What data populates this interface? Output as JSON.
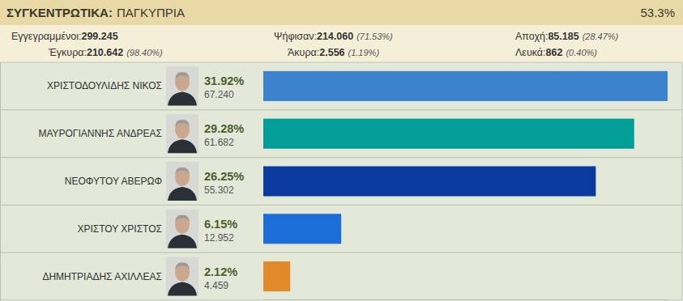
{
  "summary": {
    "title": "ΣΥΓΚΕΝΤΡΩΤΙΚΑ:",
    "subtitle": "ΠΑΓΚΥΠΡΙΑ",
    "counted": "53.3%",
    "stats": [
      [
        {
          "label": "Εγγεγραμμένοι:",
          "value": "299.245"
        },
        {
          "label": "Ψήφισαν:",
          "value": "214.060",
          "share": "(71.53%)"
        },
        {
          "label": "Αποχή:",
          "value": "85.185",
          "share": "(28.47%)"
        }
      ],
      [
        {
          "label": "Έγκυρα:",
          "value": "210.642",
          "share": "(98.40%)"
        },
        {
          "label": "Άκυρα:",
          "value": "2.556",
          "share": "(1.19%)"
        },
        {
          "label": "Λευκά:",
          "value": "862",
          "share": "(0.40%)"
        }
      ]
    ]
  },
  "chart_data": {
    "type": "bar",
    "orientation": "horizontal",
    "categories": [
      "ΧΡΙΣΤΟΔΟΥΛΙΔΗΣ ΝΙΚΟΣ",
      "ΜΑΥΡΟΓΙΑΝΝΗΣ ΑΝΔΡΕΑΣ",
      "ΝΕΟΦΥΤΟΥ ΑΒΕΡΩΦ",
      "ΧΡΙΣΤΟΥ ΧΡΙΣΤΟΣ",
      "ΔΗΜΗΤΡΙΑΔΗΣ ΑΧΙΛΛΕΑΣ"
    ],
    "values": [
      31.92,
      29.28,
      26.25,
      6.15,
      2.12
    ],
    "value_labels": [
      "31.92%",
      "29.28%",
      "26.25%",
      "6.15%",
      "2.12%"
    ],
    "votes": [
      67240,
      61682,
      55302,
      12952,
      4459
    ],
    "vote_labels": [
      "67.240",
      "61.682",
      "55.302",
      "12.952",
      "4.459"
    ],
    "colors": [
      "#3d82cc",
      "#009e96",
      "#0a3a9e",
      "#1c6ed8",
      "#e08a2a"
    ],
    "xlim": [
      0,
      31.92
    ],
    "data_labels": true,
    "tick_labels": false,
    "grid": false
  }
}
